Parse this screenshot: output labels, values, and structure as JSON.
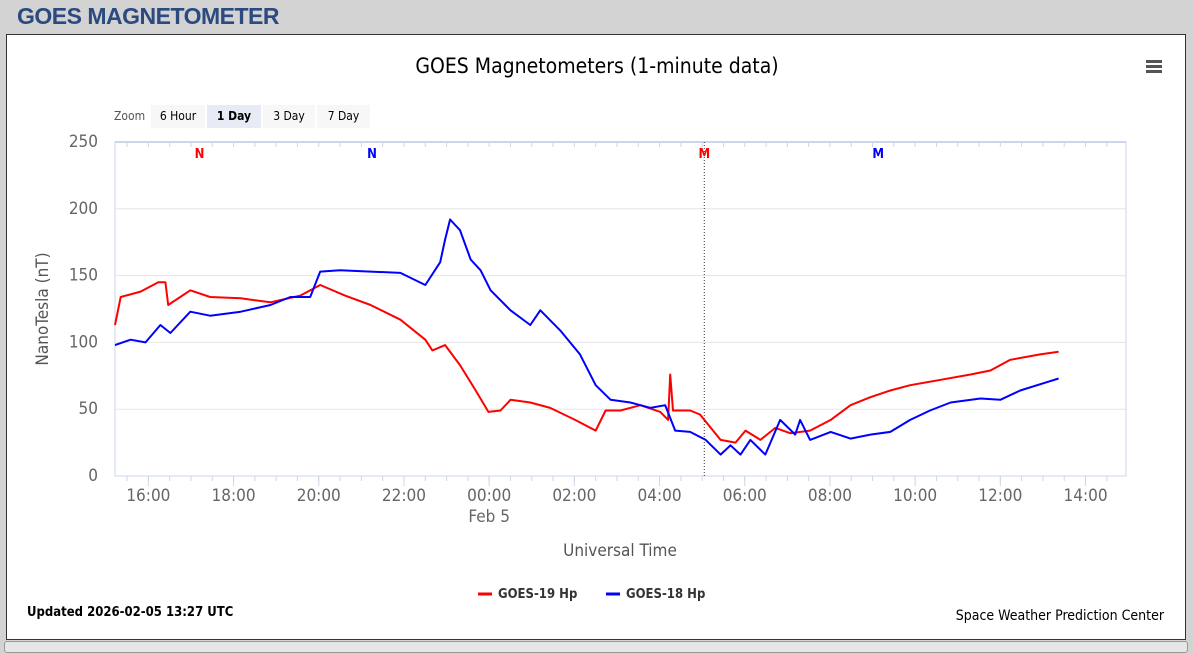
{
  "header": {
    "title": "GOES MAGNETOMETER"
  },
  "menu_icon": "hamburger-menu-icon",
  "zoom": {
    "label": "Zoom",
    "buttons": [
      "6 Hour",
      "1 Day",
      "3 Day",
      "7 Day"
    ],
    "selected": "1 Day"
  },
  "footer": {
    "updated": "Updated 2026-02-05 13:27 UTC",
    "credit": "Space Weather Prediction Center"
  },
  "chart_data": {
    "type": "line",
    "title": "GOES Magnetometers (1-minute data)",
    "xlabel": "Universal Time",
    "ylabel": "NanoTesla (nT)",
    "ylim": [
      0,
      250
    ],
    "yticks": [
      0,
      50,
      100,
      150,
      200,
      250
    ],
    "xlim": [
      "2026-02-04T15:13Z",
      "2026-02-05T14:57Z"
    ],
    "xticks": [
      {
        "t": "2026-02-04T16:00Z",
        "label": "16:00"
      },
      {
        "t": "2026-02-04T18:00Z",
        "label": "18:00"
      },
      {
        "t": "2026-02-04T20:00Z",
        "label": "20:00"
      },
      {
        "t": "2026-02-04T22:00Z",
        "label": "22:00"
      },
      {
        "t": "2026-02-05T00:00Z",
        "label": "00:00",
        "sublabel": "Feb 5"
      },
      {
        "t": "2026-02-05T02:00Z",
        "label": "02:00"
      },
      {
        "t": "2026-02-05T04:00Z",
        "label": "04:00"
      },
      {
        "t": "2026-02-05T06:00Z",
        "label": "06:00"
      },
      {
        "t": "2026-02-05T08:00Z",
        "label": "08:00"
      },
      {
        "t": "2026-02-05T10:00Z",
        "label": "10:00"
      },
      {
        "t": "2026-02-05T12:00Z",
        "label": "12:00"
      },
      {
        "t": "2026-02-05T14:00Z",
        "label": "14:00"
      }
    ],
    "grid": true,
    "legend": "bottom-center",
    "markers": [
      {
        "label": "N",
        "t": "2026-02-04T17:12Z",
        "color": "#ff0000"
      },
      {
        "label": "N",
        "t": "2026-02-04T21:15Z",
        "color": "#0000ff"
      },
      {
        "label": "M",
        "t": "2026-02-05T05:03Z",
        "color": "#ff0000",
        "line": true
      },
      {
        "label": "M",
        "t": "2026-02-05T09:08Z",
        "color": "#0000ff"
      }
    ],
    "series": [
      {
        "name": "GOES-19 Hp",
        "color": "#ff0000",
        "points": [
          [
            "2026-02-04T15:13Z",
            113
          ],
          [
            "2026-02-04T15:21Z",
            134
          ],
          [
            "2026-02-04T15:49Z",
            138
          ],
          [
            "2026-02-04T16:14Z",
            145
          ],
          [
            "2026-02-04T16:24Z",
            145
          ],
          [
            "2026-02-04T16:28Z",
            128
          ],
          [
            "2026-02-04T16:59Z",
            139
          ],
          [
            "2026-02-04T17:27Z",
            134
          ],
          [
            "2026-02-04T18:10Z",
            133
          ],
          [
            "2026-02-04T18:52Z",
            130
          ],
          [
            "2026-02-04T19:34Z",
            135
          ],
          [
            "2026-02-04T20:02Z",
            143
          ],
          [
            "2026-02-04T20:37Z",
            135
          ],
          [
            "2026-02-04T21:13Z",
            128
          ],
          [
            "2026-02-04T21:55Z",
            117
          ],
          [
            "2026-02-04T22:30Z",
            102
          ],
          [
            "2026-02-04T22:40Z",
            94
          ],
          [
            "2026-02-04T22:58Z",
            98
          ],
          [
            "2026-02-04T23:19Z",
            83
          ],
          [
            "2026-02-04T23:41Z",
            64
          ],
          [
            "2026-02-04T23:59Z",
            48
          ],
          [
            "2026-02-05T00:16Z",
            49
          ],
          [
            "2026-02-05T00:30Z",
            57
          ],
          [
            "2026-02-05T00:58Z",
            55
          ],
          [
            "2026-02-05T01:26Z",
            51
          ],
          [
            "2026-02-05T02:01Z",
            42
          ],
          [
            "2026-02-05T02:30Z",
            34
          ],
          [
            "2026-02-05T02:44Z",
            49
          ],
          [
            "2026-02-05T03:05Z",
            49
          ],
          [
            "2026-02-05T03:33Z",
            53
          ],
          [
            "2026-02-05T04:01Z",
            48
          ],
          [
            "2026-02-05T04:12Z",
            42
          ],
          [
            "2026-02-05T04:15Z",
            76
          ],
          [
            "2026-02-05T04:19Z",
            49
          ],
          [
            "2026-02-05T04:43Z",
            49
          ],
          [
            "2026-02-05T04:57Z",
            46
          ],
          [
            "2026-02-05T05:26Z",
            27
          ],
          [
            "2026-02-05T05:47Z",
            25
          ],
          [
            "2026-02-05T06:01Z",
            34
          ],
          [
            "2026-02-05T06:22Z",
            27
          ],
          [
            "2026-02-05T06:43Z",
            36
          ],
          [
            "2026-02-05T07:04Z",
            32
          ],
          [
            "2026-02-05T07:32Z",
            34
          ],
          [
            "2026-02-05T08:01Z",
            42
          ],
          [
            "2026-02-05T08:29Z",
            53
          ],
          [
            "2026-02-05T08:57Z",
            59
          ],
          [
            "2026-02-05T09:25Z",
            64
          ],
          [
            "2026-02-05T09:53Z",
            68
          ],
          [
            "2026-02-05T10:36Z",
            72
          ],
          [
            "2026-02-05T11:18Z",
            76
          ],
          [
            "2026-02-05T11:46Z",
            79
          ],
          [
            "2026-02-05T12:14Z",
            87
          ],
          [
            "2026-02-05T12:56Z",
            91
          ],
          [
            "2026-02-05T13:22Z",
            93
          ]
        ]
      },
      {
        "name": "GOES-18 Hp",
        "color": "#0000ff",
        "points": [
          [
            "2026-02-04T15:13Z",
            98
          ],
          [
            "2026-02-04T15:35Z",
            102
          ],
          [
            "2026-02-04T15:56Z",
            100
          ],
          [
            "2026-02-04T16:17Z",
            113
          ],
          [
            "2026-02-04T16:31Z",
            107
          ],
          [
            "2026-02-04T16:59Z",
            123
          ],
          [
            "2026-02-04T17:27Z",
            120
          ],
          [
            "2026-02-04T18:10Z",
            123
          ],
          [
            "2026-02-04T18:52Z",
            128
          ],
          [
            "2026-02-04T19:20Z",
            134
          ],
          [
            "2026-02-04T19:48Z",
            134
          ],
          [
            "2026-02-04T20:02Z",
            153
          ],
          [
            "2026-02-04T20:30Z",
            154
          ],
          [
            "2026-02-04T21:13Z",
            153
          ],
          [
            "2026-02-04T21:55Z",
            152
          ],
          [
            "2026-02-04T22:30Z",
            143
          ],
          [
            "2026-02-04T22:51Z",
            160
          ],
          [
            "2026-02-04T22:58Z",
            177
          ],
          [
            "2026-02-04T23:05Z",
            192
          ],
          [
            "2026-02-04T23:19Z",
            184
          ],
          [
            "2026-02-04T23:34Z",
            162
          ],
          [
            "2026-02-04T23:48Z",
            154
          ],
          [
            "2026-02-05T00:02Z",
            139
          ],
          [
            "2026-02-05T00:30Z",
            124
          ],
          [
            "2026-02-05T00:58Z",
            113
          ],
          [
            "2026-02-05T01:12Z",
            124
          ],
          [
            "2026-02-05T01:40Z",
            109
          ],
          [
            "2026-02-05T02:08Z",
            91
          ],
          [
            "2026-02-05T02:30Z",
            68
          ],
          [
            "2026-02-05T02:51Z",
            57
          ],
          [
            "2026-02-05T03:19Z",
            55
          ],
          [
            "2026-02-05T03:47Z",
            51
          ],
          [
            "2026-02-05T04:08Z",
            53
          ],
          [
            "2026-02-05T04:22Z",
            34
          ],
          [
            "2026-02-05T04:43Z",
            33
          ],
          [
            "2026-02-05T05:05Z",
            27
          ],
          [
            "2026-02-05T05:26Z",
            16
          ],
          [
            "2026-02-05T05:40Z",
            23
          ],
          [
            "2026-02-05T05:54Z",
            16
          ],
          [
            "2026-02-05T06:08Z",
            27
          ],
          [
            "2026-02-05T06:29Z",
            16
          ],
          [
            "2026-02-05T06:50Z",
            42
          ],
          [
            "2026-02-05T07:11Z",
            31
          ],
          [
            "2026-02-05T07:18Z",
            42
          ],
          [
            "2026-02-05T07:32Z",
            27
          ],
          [
            "2026-02-05T08:01Z",
            33
          ],
          [
            "2026-02-05T08:29Z",
            28
          ],
          [
            "2026-02-05T08:57Z",
            31
          ],
          [
            "2026-02-05T09:25Z",
            33
          ],
          [
            "2026-02-05T09:53Z",
            42
          ],
          [
            "2026-02-05T10:21Z",
            49
          ],
          [
            "2026-02-05T10:50Z",
            55
          ],
          [
            "2026-02-05T11:32Z",
            58
          ],
          [
            "2026-02-05T12:00Z",
            57
          ],
          [
            "2026-02-05T12:28Z",
            64
          ],
          [
            "2026-02-05T13:22Z",
            73
          ]
        ]
      }
    ]
  }
}
